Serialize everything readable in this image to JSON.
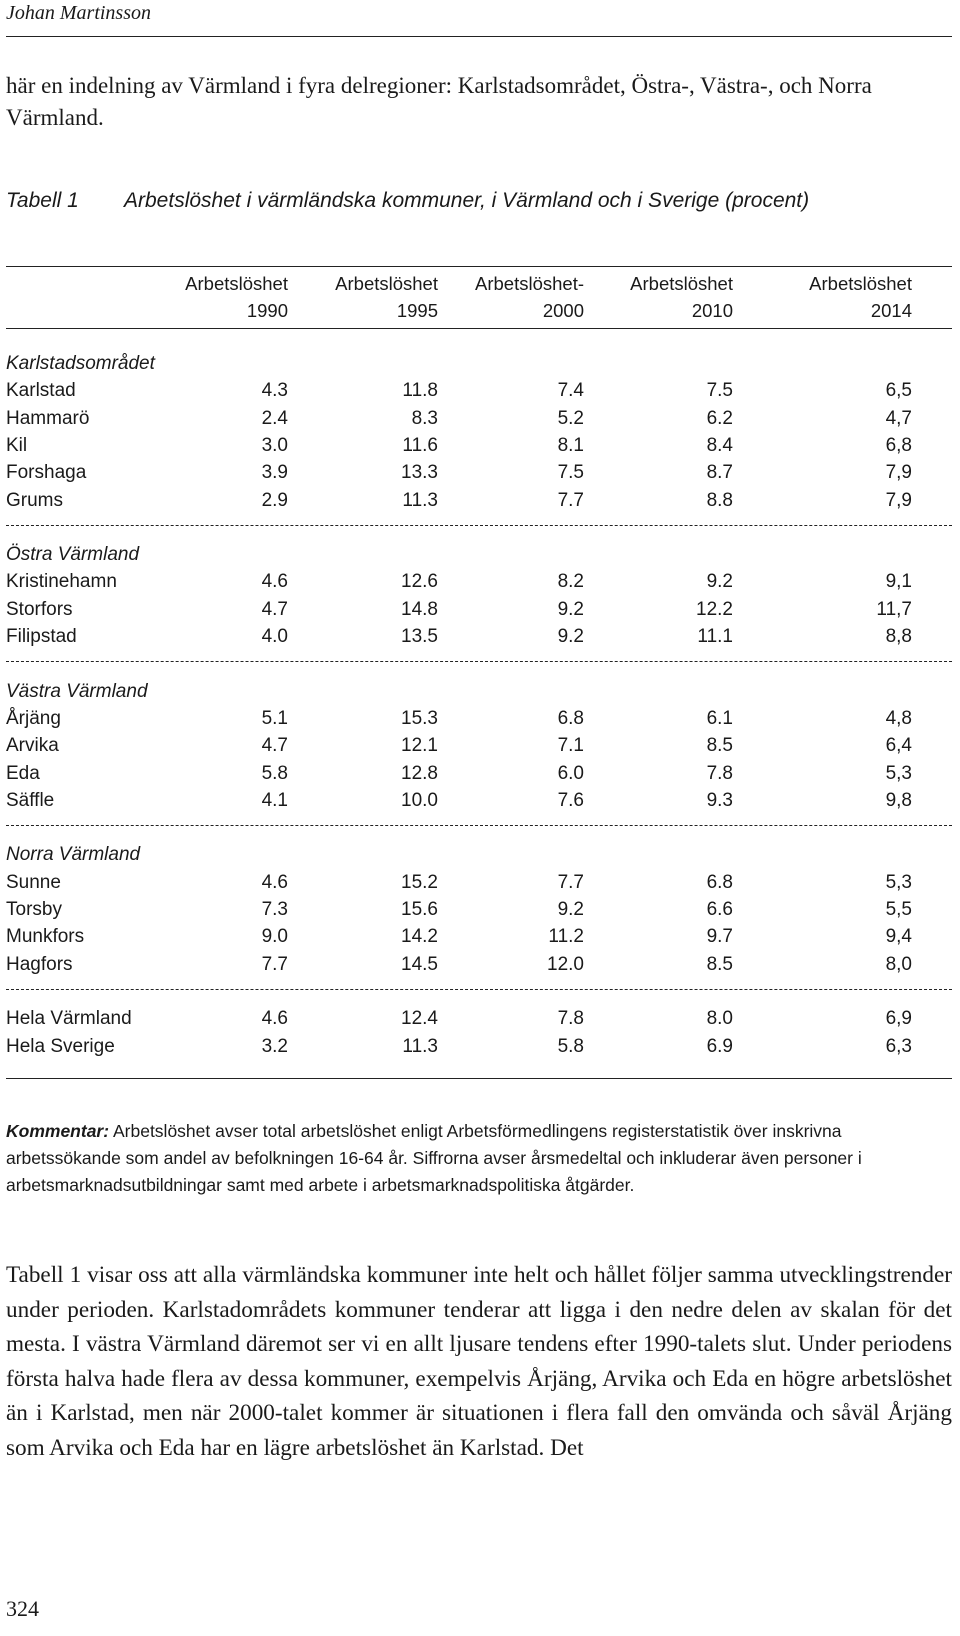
{
  "running_head": "Johan Martinsson",
  "intro_text": "här en indelning av Värmland i fyra delregioner: Karlstadsområdet, Östra-, Västra-, och Norra Värmland.",
  "table": {
    "label": "Tabell 1",
    "title": "Arbetslöshet i värmländska kommuner, i Värmland och i Sverige (procent)",
    "columns": [
      {
        "line1": "Arbetslöshet",
        "line2": "1990"
      },
      {
        "line1": "Arbetslöshet",
        "line2": "1995"
      },
      {
        "line1": "Arbetslöshet-",
        "line2": "2000"
      },
      {
        "line1": "Arbetslöshet",
        "line2": "2010"
      },
      {
        "line1": "Arbetslöshet",
        "line2": "2014"
      }
    ],
    "groups": [
      {
        "name": "Karlstadsområdet",
        "rows": [
          {
            "name": "Karlstad",
            "values": [
              "4.3",
              "11.8",
              "7.4",
              "7.5",
              "6,5"
            ]
          },
          {
            "name": "Hammarö",
            "values": [
              "2.4",
              "8.3",
              "5.2",
              "6.2",
              "4,7"
            ]
          },
          {
            "name": "Kil",
            "values": [
              "3.0",
              "11.6",
              "8.1",
              "8.4",
              "6,8"
            ]
          },
          {
            "name": "Forshaga",
            "values": [
              "3.9",
              "13.3",
              "7.5",
              "8.7",
              "7,9"
            ]
          },
          {
            "name": "Grums",
            "values": [
              "2.9",
              "11.3",
              "7.7",
              "8.8",
              "7,9"
            ]
          }
        ]
      },
      {
        "name": "Östra Värmland",
        "rows": [
          {
            "name": "Kristinehamn",
            "values": [
              "4.6",
              "12.6",
              "8.2",
              "9.2",
              "9,1"
            ]
          },
          {
            "name": "Storfors",
            "values": [
              "4.7",
              "14.8",
              "9.2",
              "12.2",
              "11,7"
            ]
          },
          {
            "name": "Filipstad",
            "values": [
              "4.0",
              "13.5",
              "9.2",
              "11.1",
              "8,8"
            ]
          }
        ]
      },
      {
        "name": "Västra Värmland",
        "rows": [
          {
            "name": "Årjäng",
            "values": [
              "5.1",
              "15.3",
              "6.8",
              "6.1",
              "4,8"
            ]
          },
          {
            "name": "Arvika",
            "values": [
              "4.7",
              "12.1",
              "7.1",
              "8.5",
              "6,4"
            ]
          },
          {
            "name": "Eda",
            "values": [
              "5.8",
              "12.8",
              "6.0",
              "7.8",
              "5,3"
            ]
          },
          {
            "name": "Säffle",
            "values": [
              "4.1",
              "10.0",
              "7.6",
              "9.3",
              "9,8"
            ]
          }
        ]
      },
      {
        "name": "Norra Värmland",
        "rows": [
          {
            "name": "Sunne",
            "values": [
              "4.6",
              "15.2",
              "7.7",
              "6.8",
              "5,3"
            ]
          },
          {
            "name": "Torsby",
            "values": [
              "7.3",
              "15.6",
              "9.2",
              "6.6",
              "5,5"
            ]
          },
          {
            "name": "Munkfors",
            "values": [
              "9.0",
              "14.2",
              "11.2",
              "9.7",
              "9,4"
            ]
          },
          {
            "name": "Hagfors",
            "values": [
              "7.7",
              "14.5",
              "12.0",
              "8.5",
              "8,0"
            ]
          }
        ]
      }
    ],
    "totals": [
      {
        "name": "Hela Värmland",
        "values": [
          "4.6",
          "12.4",
          "7.8",
          "8.0",
          "6,9"
        ]
      },
      {
        "name": "Hela Sverige",
        "values": [
          "3.2",
          "11.3",
          "5.8",
          "6.9",
          "6,3"
        ]
      }
    ]
  },
  "comment": {
    "label": "Kommentar:",
    "text": "Arbetslöshet avser total arbetslöshet enligt Arbetsförmedlingens registerstatistik över inskrivna arbetssökande som andel av befolkningen 16-64 år. Siffrorna avser årsmedeltal och inkluderar även personer i arbetsmarknadsutbildningar samt med arbete i arbetsmarknadspolitiska åtgärder."
  },
  "body_text": "Tabell 1 visar oss att alla värmländska kommuner inte helt och hållet följer samma utvecklingstrender under perioden. Karlstadområdets kommuner tenderar att ligga i den nedre delen av skalan för det mesta. I västra Värmland däremot ser vi en allt ljusare tendens efter 1990-talets slut. Under periodens första halva hade flera av dessa kommuner, exempelvis Årjäng, Arvika och Eda en högre arbetslöshet än i Karlstad, men när 2000-talet kommer är situationen i flera fall den omvända och såväl Årjäng som Arvika och Eda har en lägre arbetslöshet än Karlstad. Det",
  "page_number": "324"
}
